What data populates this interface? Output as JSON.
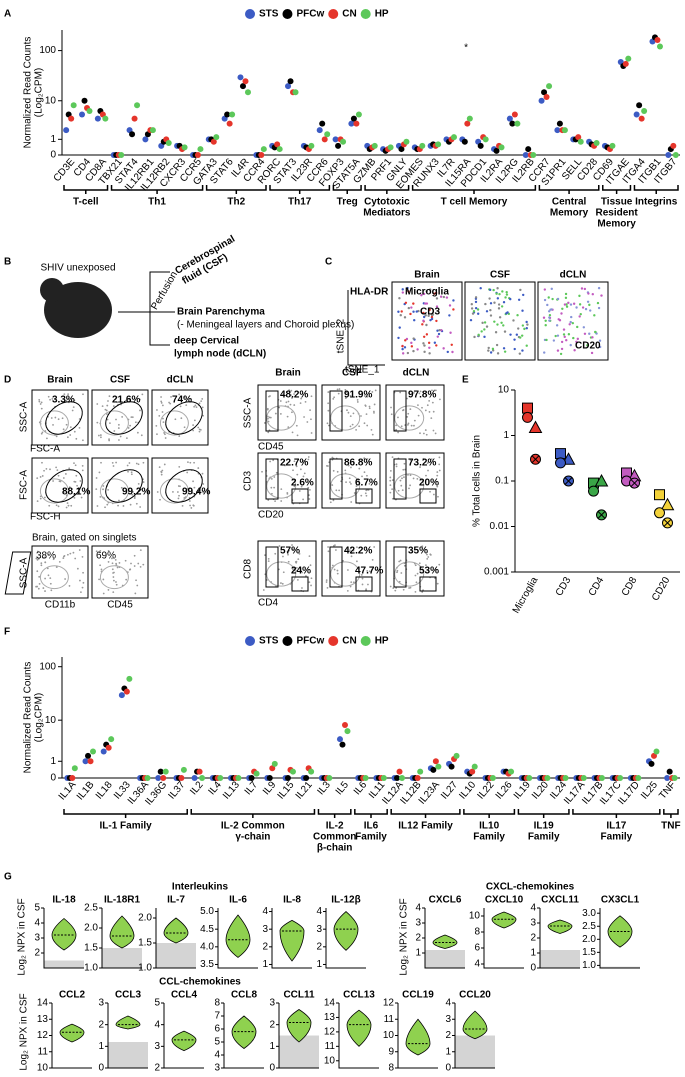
{
  "panel_labels": [
    "A",
    "B",
    "C",
    "D",
    "E",
    "F",
    "G"
  ],
  "panel_b": {
    "animal": "SHIV unexposed",
    "csf": [
      "Cerebrospinal",
      "fluid (CSF)"
    ],
    "perfusion": "Perfusion",
    "brain": "Brain Parenchyma",
    "brain_note": "(- Meningeal layers and Choroid plexus)",
    "dcln": [
      "deep Cervical",
      "lymph node (dCLN)"
    ]
  },
  "panel_c": {
    "headers": [
      "Brain",
      "CSF",
      "dCLN"
    ],
    "hla": "HLA-DR",
    "microglia": "Microglia",
    "cd3": "CD3",
    "cd20": "CD20",
    "y_axis": "tSNE_2",
    "x_axis": "tSNE_1"
  },
  "panel_d": {
    "left_headers": [
      "Brain",
      "CSF",
      "dCLN"
    ],
    "right_headers": [
      "Brain",
      "CSF",
      "dCLN"
    ],
    "left_rows": [
      {
        "y_label": "SSC-A",
        "x_label": "FSC-A",
        "gates": [
          "3.3%",
          "21.6%",
          "74%"
        ]
      },
      {
        "y_label": "FSC-A",
        "x_label": "FSC-H",
        "gates": [
          "88.1%",
          "99.2%",
          "99.4%"
        ]
      }
    ],
    "singlets": {
      "note": "Brain, gated on singlets",
      "y_label": "SSC-A",
      "x_labels": [
        "CD11b",
        "CD45"
      ],
      "gates": [
        "38%",
        "69%"
      ]
    },
    "right_rows": [
      {
        "y_label": "SSC-A",
        "x_label": "CD45",
        "gates": [
          [
            "48.2%"
          ],
          [
            "91.9%"
          ],
          [
            "97.8%"
          ]
        ]
      },
      {
        "y_label": "CD3",
        "x_label": "CD20",
        "gates": [
          [
            "22.7%",
            "2.6%"
          ],
          [
            "86.8%",
            "6.7%"
          ],
          [
            "73.2%",
            "20%"
          ]
        ]
      },
      {
        "y_label": "CD8",
        "x_label": "CD4",
        "gates": [
          [
            "57%",
            "24%"
          ],
          [
            "42.2%",
            "47.7%"
          ],
          [
            "35%",
            "53%"
          ]
        ]
      }
    ]
  },
  "panel_g": {
    "sections": [
      "Interleukins",
      "CXCL-chemokines",
      "CCL-chemokines"
    ],
    "y_label": "Log₂ NPX in CSF"
  },
  "chart_data": [
    {
      "type": "strip",
      "yscale": "log1p",
      "y_label": [
        "Normalized Read Counts",
        "(Log₂CPM)"
      ],
      "categories": [
        "CD3E",
        "CD4",
        "CD8A",
        "TBX21",
        "STAT4",
        "IL12RB1",
        "IL12RB2",
        "CXCR3",
        "CCR5",
        "GATA3",
        "STAT6",
        "IL4R",
        "CCR4",
        "RORC",
        "STAT3",
        "IL23R",
        "CCR6",
        "FOXP3",
        "STAT5A",
        "GZMB",
        "PRF1",
        "GNLY",
        "EOMES",
        "RUNX3",
        "IL7R",
        "IL15RA",
        "PDCD1",
        "IL2RA",
        "IL2RG",
        "IL2RB",
        "CCR7",
        "S1PR1",
        "SELL",
        "CD28",
        "CD69",
        "ITGAE",
        "ITGA4",
        "ITGB1",
        "ITGB7"
      ],
      "series": [
        {
          "name": "STS",
          "color": "#3c5bc4",
          "values": [
            2,
            5,
            4,
            0,
            2,
            1,
            0.5,
            0.5,
            0,
            1,
            4,
            30,
            0,
            0.5,
            20,
            0.5,
            2,
            1,
            3,
            0.5,
            0.3,
            0.5,
            0.4,
            0.5,
            1,
            1,
            0.8,
            0.3,
            4,
            0,
            10,
            2,
            1,
            0.8,
            0.5,
            60,
            5,
            150,
            0
          ]
        },
        {
          "name": "PFCw",
          "color": "#000000",
          "values": [
            5,
            10,
            6,
            0,
            1.5,
            1.5,
            0.8,
            0.5,
            0,
            1,
            5,
            20,
            0,
            0.4,
            25,
            0.4,
            3,
            0.5,
            4,
            0.3,
            0.2,
            0.3,
            0.3,
            0.6,
            0.8,
            0.8,
            0.5,
            0.2,
            3,
            0.3,
            15,
            3,
            1,
            0.6,
            0.4,
            50,
            8,
            180,
            0.3
          ]
        },
        {
          "name": "CN",
          "color": "#e5352b",
          "values": [
            4,
            7,
            5,
            0,
            4,
            2,
            1,
            0.3,
            0,
            0.8,
            3,
            25,
            0,
            0.6,
            15,
            0.3,
            1,
            1,
            3,
            0.4,
            0.3,
            0.6,
            0.3,
            0.5,
            1,
            3,
            1.2,
            0.5,
            5,
            0,
            12,
            2,
            1.2,
            0.5,
            0.3,
            55,
            4,
            160,
            0.5
          ]
        },
        {
          "name": "HP",
          "color": "#5cc85a",
          "values": [
            8,
            6,
            4,
            0,
            8,
            2,
            0.7,
            0.4,
            0.3,
            1.2,
            5,
            15,
            0.3,
            0.3,
            15,
            0.5,
            1.5,
            0.8,
            5,
            0.5,
            0.4,
            0.8,
            0.5,
            0.6,
            1.2,
            4,
            1,
            0.4,
            3,
            0,
            20,
            2,
            0.8,
            0.7,
            0.5,
            70,
            6,
            120,
            0
          ]
        }
      ],
      "ylim": [
        0,
        250
      ],
      "yticks": [
        0,
        1,
        10,
        100
      ],
      "annotation": {
        "text": "*",
        "at": 25
      },
      "groups": [
        {
          "label": [
            "T-cell"
          ],
          "span": [
            0,
            2
          ]
        },
        {
          "label": [
            "Th1"
          ],
          "span": [
            3,
            8
          ]
        },
        {
          "label": [
            "Th2"
          ],
          "span": [
            9,
            12
          ]
        },
        {
          "label": [
            "Th17"
          ],
          "span": [
            13,
            16
          ]
        },
        {
          "label": [
            "Treg"
          ],
          "span": [
            17,
            18
          ]
        },
        {
          "label": [
            "Cytotoxic",
            "Mediators"
          ],
          "span": [
            19,
            21
          ]
        },
        {
          "label": [
            "T cell Memory"
          ],
          "span": [
            22,
            29
          ]
        },
        {
          "label": [
            "Central",
            "Memory"
          ],
          "span": [
            30,
            33
          ]
        },
        {
          "label": [
            "Tissue",
            "Resident",
            "Memory"
          ],
          "span": [
            34,
            35
          ]
        },
        {
          "label": [
            "Integrins"
          ],
          "span": [
            36,
            38
          ]
        }
      ]
    },
    {
      "type": "dot",
      "yscale": "log",
      "y_label": "% Total cells in Brain",
      "categories": [
        "Microglia",
        "CD3",
        "CD4",
        "CD8",
        "CD20"
      ],
      "colors": [
        "#e5352b",
        "#3c5bc4",
        "#3aa647",
        "#c35bc0",
        "#f3d23a"
      ],
      "series": [
        {
          "shape": "square",
          "values": [
            4,
            0.4,
            0.09,
            0.15,
            0.05
          ]
        },
        {
          "shape": "triangle",
          "values": [
            1.5,
            0.3,
            0.1,
            0.13,
            0.03
          ]
        },
        {
          "shape": "circle",
          "values": [
            2.5,
            0.25,
            0.06,
            0.1,
            0.02
          ]
        },
        {
          "shape": "crossed-circle",
          "values": [
            0.3,
            0.1,
            0.018,
            0.09,
            0.012
          ]
        }
      ],
      "ylim": [
        0.001,
        10
      ],
      "yticks": [
        0.001,
        0.01,
        0.1,
        1,
        10
      ]
    },
    {
      "type": "strip",
      "yscale": "log1p",
      "y_label": [
        "Normalized Read Counts",
        "(Log₂CPM)"
      ],
      "categories": [
        "IL1A",
        "IL1B",
        "IL18",
        "IL33",
        "IL36A",
        "IL36G",
        "IL37",
        "IL2",
        "IL4",
        "IL13",
        "IL7",
        "IL9",
        "IL15",
        "IL21",
        "IL3",
        "IL5",
        "IL6",
        "IL11",
        "IL12A",
        "IL12B",
        "IL23A",
        "IL27",
        "IL10",
        "IL22",
        "IL26",
        "IL19",
        "IL20",
        "IL24",
        "IL17A",
        "IL17B",
        "IL17C",
        "IL17D",
        "IL25",
        "TNF"
      ],
      "series": [
        {
          "name": "STS",
          "color": "#3c5bc4",
          "values": [
            0,
            1,
            2,
            30,
            0,
            0,
            0,
            0,
            0,
            0,
            0,
            0,
            0,
            0,
            0,
            4,
            0,
            0,
            0,
            0,
            0.5,
            0.8,
            0.3,
            0,
            0.3,
            0,
            0,
            0,
            0,
            0,
            0,
            0,
            1,
            0
          ]
        },
        {
          "name": "PFCw",
          "color": "#000000",
          "values": [
            0,
            1.5,
            3,
            40,
            0,
            0.3,
            0,
            0.3,
            0,
            0,
            0,
            0,
            0,
            0,
            0,
            3,
            0,
            0,
            0,
            0,
            0.4,
            0.6,
            0.2,
            0,
            0.3,
            0,
            0,
            0,
            0,
            0,
            0,
            0,
            0.8,
            0.3
          ]
        },
        {
          "name": "CN",
          "color": "#e5352b",
          "values": [
            0,
            1,
            2.5,
            35,
            0,
            0,
            0,
            0.3,
            0,
            0,
            0.3,
            0.5,
            0.4,
            0.5,
            0,
            8,
            0,
            0,
            0.3,
            0,
            1,
            1.2,
            0.3,
            0,
            0.2,
            0,
            0,
            0,
            0,
            0,
            0,
            0,
            1.5,
            0
          ]
        },
        {
          "name": "HP",
          "color": "#5cc85a",
          "values": [
            0.5,
            2,
            4,
            60,
            0,
            0.3,
            0.4,
            0,
            0,
            0,
            0.2,
            0.8,
            0.3,
            0.3,
            0,
            6,
            0,
            0,
            0,
            0.3,
            0.6,
            1.5,
            0.6,
            0,
            0.3,
            0,
            0,
            0,
            0,
            0,
            0,
            0,
            2,
            0
          ]
        }
      ],
      "ylim": [
        0,
        150
      ],
      "yticks": [
        0,
        1,
        10,
        100
      ],
      "groups": [
        {
          "label": [
            "IL-1 Family"
          ],
          "span": [
            0,
            6
          ]
        },
        {
          "label": [
            "IL-2 Common",
            "γ-chain"
          ],
          "span": [
            7,
            13
          ]
        },
        {
          "label": [
            "IL-2",
            "Common",
            "β-chain"
          ],
          "span": [
            14,
            15
          ]
        },
        {
          "label": [
            "IL6",
            "Family"
          ],
          "span": [
            16,
            17
          ]
        },
        {
          "label": [
            "IL12 Family"
          ],
          "span": [
            18,
            21
          ]
        },
        {
          "label": [
            "IL10",
            "Family"
          ],
          "span": [
            22,
            24
          ]
        },
        {
          "label": [
            "IL19",
            "Family"
          ],
          "span": [
            25,
            27
          ]
        },
        {
          "label": [
            "IL17",
            "Family"
          ],
          "span": [
            28,
            32
          ]
        },
        {
          "label": [
            "TNF"
          ],
          "span": [
            33,
            33
          ]
        }
      ]
    },
    {
      "type": "violin",
      "title": "IL-18",
      "min": 2.2,
      "median": 3.2,
      "max": 4.3,
      "lod": 1.5,
      "ylim": [
        1,
        5
      ],
      "yticks": [
        2,
        3,
        4,
        5
      ]
    },
    {
      "type": "violin",
      "title": "IL-18R1",
      "min": 1.5,
      "median": 1.8,
      "max": 2.3,
      "lod": 1.5,
      "ylim": [
        1,
        2.5
      ],
      "yticks": [
        {
          "value": 1,
          "label": "1.0"
        },
        1.5,
        {
          "value": 2,
          "label": "2.0"
        },
        2.5
      ]
    },
    {
      "type": "violin",
      "title": "IL-7",
      "min": 1.5,
      "median": 1.7,
      "max": 2.0,
      "lod": 1.5,
      "ylim": [
        1,
        2.2
      ],
      "yticks": [
        {
          "value": 1,
          "label": "1.0"
        },
        1.5,
        {
          "value": 2,
          "label": "2.0"
        }
      ]
    },
    {
      "type": "violin",
      "title": "IL-6",
      "min": 3.7,
      "median": 4.2,
      "max": 4.9,
      "ylim": [
        3.4,
        5.1
      ],
      "yticks": [
        3.5,
        {
          "value": 4,
          "label": "4.0"
        },
        4.5,
        {
          "value": 5,
          "label": "5.0"
        }
      ]
    },
    {
      "type": "violin",
      "title": "IL-8",
      "min": 1.2,
      "median": 2.9,
      "max": 3.5,
      "ylim": [
        0.8,
        4.2
      ],
      "yticks": [
        1,
        2,
        3,
        4
      ]
    },
    {
      "type": "violin",
      "title": "IL-12β",
      "min": 1.8,
      "median": 3,
      "max": 4,
      "ylim": [
        0.8,
        4.2
      ],
      "yticks": [
        1,
        2,
        3,
        4
      ]
    },
    {
      "type": "violin",
      "title": "CXCL6",
      "min": 1.3,
      "median": 1.7,
      "max": 2.2,
      "lod": 1.2,
      "ylim": [
        0,
        4
      ],
      "yticks": [
        1,
        2,
        3,
        4
      ]
    },
    {
      "type": "violin",
      "title": "CXCL10",
      "min": 8.5,
      "median": 9.6,
      "max": 10.5,
      "ylim": [
        3.5,
        11
      ],
      "yticks": [
        4,
        6,
        8,
        10
      ]
    },
    {
      "type": "violin",
      "title": "CXCL11",
      "min": 2.3,
      "median": 2.8,
      "max": 3.2,
      "lod": 1.2,
      "ylim": [
        0,
        4
      ],
      "yticks": [
        0,
        1,
        2,
        3,
        4
      ]
    },
    {
      "type": "violin",
      "title": "CX3CL1",
      "min": 1.7,
      "median": 2.3,
      "max": 2.9,
      "lod": 0.95,
      "ylim": [
        0.9,
        3.2
      ],
      "yticks": [
        {
          "value": 1,
          "label": "1.0"
        },
        1.5,
        {
          "value": 2,
          "label": "2.0"
        },
        2.5,
        {
          "value": 3,
          "label": "3.0"
        }
      ]
    },
    {
      "type": "violin",
      "title": "CCL2",
      "min": 11.6,
      "median": 12.2,
      "max": 12.7,
      "ylim": [
        10,
        14
      ],
      "yticks": [
        10,
        11,
        12,
        13,
        14
      ]
    },
    {
      "type": "violin",
      "title": "CCL3",
      "min": 1.8,
      "median": 2,
      "max": 2.4,
      "lod": 1.2,
      "ylim": [
        0,
        3
      ],
      "yticks": [
        0,
        1,
        2,
        3
      ]
    },
    {
      "type": "violin",
      "title": "CCL4",
      "min": 2.8,
      "median": 3.3,
      "max": 3.7,
      "ylim": [
        2,
        5
      ],
      "yticks": [
        2,
        3,
        4,
        5
      ]
    },
    {
      "type": "violin",
      "title": "CCL8",
      "min": 4.5,
      "median": 5.8,
      "max": 7,
      "ylim": [
        3,
        8
      ],
      "yticks": [
        3,
        4,
        5,
        6,
        7,
        8
      ]
    },
    {
      "type": "violin",
      "title": "CCL11",
      "min": 1.2,
      "median": 2.1,
      "max": 2.7,
      "lod": 1.5,
      "ylim": [
        0,
        3
      ],
      "yticks": [
        0,
        1,
        2,
        3
      ]
    },
    {
      "type": "violin",
      "title": "CCL13",
      "min": 11,
      "median": 12.5,
      "max": 13.5,
      "ylim": [
        9.5,
        14
      ],
      "yticks": [
        10,
        11,
        12,
        13,
        14
      ]
    },
    {
      "type": "violin",
      "title": "CCL19",
      "min": 8.8,
      "median": 9.5,
      "max": 11,
      "ylim": [
        8,
        12
      ],
      "yticks": [
        8,
        9,
        10,
        11,
        12
      ]
    },
    {
      "type": "violin",
      "title": "CCL20",
      "min": 1.8,
      "median": 2.4,
      "max": 3.5,
      "lod": 2,
      "ylim": [
        0,
        4
      ],
      "yticks": [
        0,
        1,
        2,
        3,
        4
      ]
    }
  ]
}
